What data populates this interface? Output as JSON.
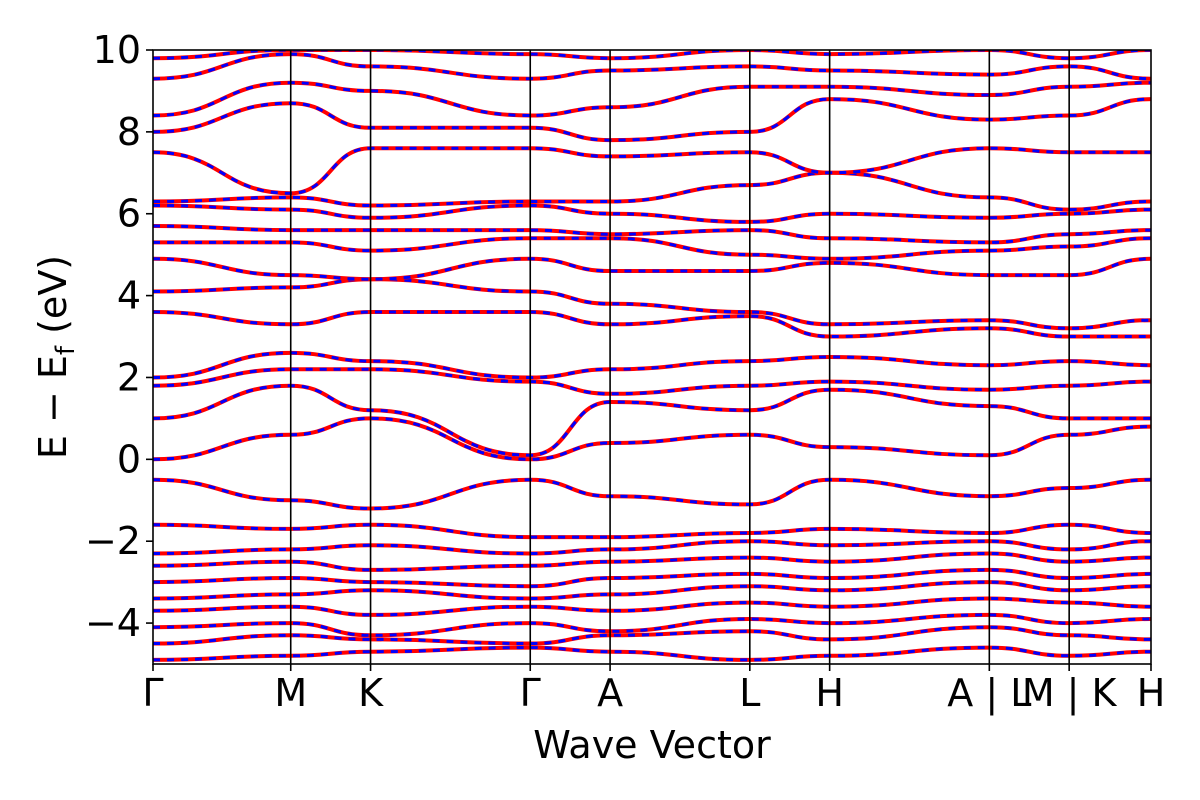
{
  "chart_data": {
    "type": "line",
    "title": "",
    "xlabel": "Wave Vector",
    "ylabel": "E − E",
    "ylabel_sub": "f",
    "ylabel_unit": " (eV)",
    "ylim": [
      -5,
      10
    ],
    "yticks": [
      -4,
      -2,
      0,
      2,
      4,
      6,
      8,
      10
    ],
    "ytick_labels": [
      "−4",
      "−2",
      "0",
      "2",
      "4",
      "6",
      "8",
      "10"
    ],
    "xlim": [
      0,
      1
    ],
    "kpath": [
      {
        "label": "Γ",
        "pos": 0.0
      },
      {
        "label": "M",
        "pos": 0.138
      },
      {
        "label": "K",
        "pos": 0.218
      },
      {
        "label": "Γ",
        "pos": 0.378
      },
      {
        "label": "A",
        "pos": 0.458
      },
      {
        "label": "L",
        "pos": 0.598
      },
      {
        "label": "H",
        "pos": 0.678
      },
      {
        "label": "A | L",
        "pos": 0.838
      },
      {
        "label": "M | K",
        "pos": 0.918
      },
      {
        "label": "H",
        "pos": 1.0
      }
    ],
    "segments": [
      [
        0.0,
        0.138
      ],
      [
        0.138,
        0.218
      ],
      [
        0.218,
        0.378
      ],
      [
        0.378,
        0.458
      ],
      [
        0.458,
        0.598
      ],
      [
        0.598,
        0.678
      ],
      [
        0.678,
        0.838
      ],
      [
        0.838,
        0.918
      ],
      [
        0.918,
        1.0
      ]
    ],
    "series": [
      {
        "name": "",
        "color": "#ff0000",
        "style": "solid"
      },
      {
        "name": "",
        "color": "#0000ff",
        "style": "dashed"
      }
    ],
    "bands": [
      {
        "e": [
          -4.9,
          -4.8,
          -4.7,
          -4.6,
          -4.7,
          -4.9,
          -4.8,
          -4.6,
          -4.8,
          -4.7
        ]
      },
      {
        "e": [
          -4.5,
          -4.3,
          -4.4,
          -4.5,
          -4.3,
          -4.2,
          -4.4,
          -4.1,
          -4.3,
          -4.4
        ]
      },
      {
        "e": [
          -4.1,
          -4.0,
          -4.3,
          -4.0,
          -4.2,
          -3.9,
          -4.0,
          -3.8,
          -4.0,
          -3.9
        ]
      },
      {
        "e": [
          -3.7,
          -3.6,
          -3.8,
          -3.6,
          -3.7,
          -3.5,
          -3.6,
          -3.4,
          -3.5,
          -3.6
        ]
      },
      {
        "e": [
          -3.4,
          -3.3,
          -3.2,
          -3.4,
          -3.3,
          -3.1,
          -3.2,
          -3.0,
          -3.2,
          -3.1
        ]
      },
      {
        "e": [
          -3.0,
          -2.9,
          -3.0,
          -3.1,
          -2.9,
          -2.8,
          -2.9,
          -2.7,
          -2.9,
          -2.8
        ]
      },
      {
        "e": [
          -2.6,
          -2.5,
          -2.7,
          -2.6,
          -2.5,
          -2.4,
          -2.5,
          -2.3,
          -2.5,
          -2.4
        ]
      },
      {
        "e": [
          -2.3,
          -2.2,
          -2.1,
          -2.3,
          -2.2,
          -2.0,
          -2.1,
          -2.0,
          -2.2,
          -2.0
        ]
      },
      {
        "e": [
          -1.6,
          -1.7,
          -1.6,
          -1.9,
          -1.9,
          -1.8,
          -1.7,
          -1.8,
          -1.6,
          -1.8
        ]
      },
      {
        "e": [
          -0.5,
          -1.0,
          -1.2,
          -0.5,
          -0.9,
          -1.1,
          -0.5,
          -0.9,
          -0.7,
          -0.5
        ]
      },
      {
        "e": [
          0.0,
          0.6,
          1.0,
          0.0,
          0.4,
          0.6,
          0.3,
          0.1,
          0.6,
          0.8
        ]
      },
      {
        "e": [
          1.0,
          1.8,
          1.2,
          0.1,
          1.4,
          1.2,
          1.7,
          1.3,
          1.0,
          1.0
        ]
      },
      {
        "e": [
          1.8,
          2.2,
          2.2,
          1.9,
          1.6,
          1.8,
          1.9,
          1.7,
          1.8,
          1.9
        ]
      },
      {
        "e": [
          2.0,
          2.6,
          2.4,
          2.0,
          2.2,
          2.4,
          2.5,
          2.3,
          2.4,
          2.3
        ]
      },
      {
        "e": [
          3.6,
          3.3,
          3.6,
          3.6,
          3.3,
          3.5,
          3.0,
          3.2,
          3.0,
          3.0
        ]
      },
      {
        "e": [
          4.1,
          4.2,
          4.4,
          4.1,
          3.8,
          3.6,
          3.3,
          3.4,
          3.2,
          3.4
        ]
      },
      {
        "e": [
          4.9,
          4.5,
          4.4,
          4.9,
          4.6,
          4.6,
          4.8,
          4.5,
          4.5,
          4.9
        ]
      },
      {
        "e": [
          5.3,
          5.3,
          5.1,
          5.4,
          5.4,
          5.0,
          4.9,
          5.1,
          5.2,
          5.4
        ]
      },
      {
        "e": [
          5.7,
          5.6,
          5.6,
          5.6,
          5.5,
          5.6,
          5.4,
          5.3,
          5.5,
          5.6
        ]
      },
      {
        "e": [
          6.2,
          6.1,
          5.9,
          6.2,
          6.0,
          5.8,
          6.0,
          5.9,
          6.0,
          6.1
        ]
      },
      {
        "e": [
          6.3,
          6.4,
          6.2,
          6.3,
          6.3,
          6.7,
          7.0,
          6.4,
          6.1,
          6.3
        ]
      },
      {
        "e": [
          7.5,
          6.5,
          7.6,
          7.6,
          7.4,
          7.5,
          7.0,
          7.6,
          7.5,
          7.5
        ]
      },
      {
        "e": [
          8.0,
          8.7,
          8.1,
          8.1,
          7.8,
          8.0,
          8.8,
          8.3,
          8.4,
          8.8
        ]
      },
      {
        "e": [
          8.4,
          9.2,
          9.0,
          8.4,
          8.6,
          9.1,
          9.1,
          8.9,
          9.1,
          9.2
        ]
      },
      {
        "e": [
          9.3,
          9.9,
          9.6,
          9.3,
          9.5,
          9.6,
          9.5,
          9.4,
          9.6,
          9.3
        ]
      },
      {
        "e": [
          9.8,
          10.0,
          10.0,
          9.9,
          9.8,
          10.0,
          9.9,
          10.0,
          9.8,
          10.0
        ]
      }
    ]
  }
}
